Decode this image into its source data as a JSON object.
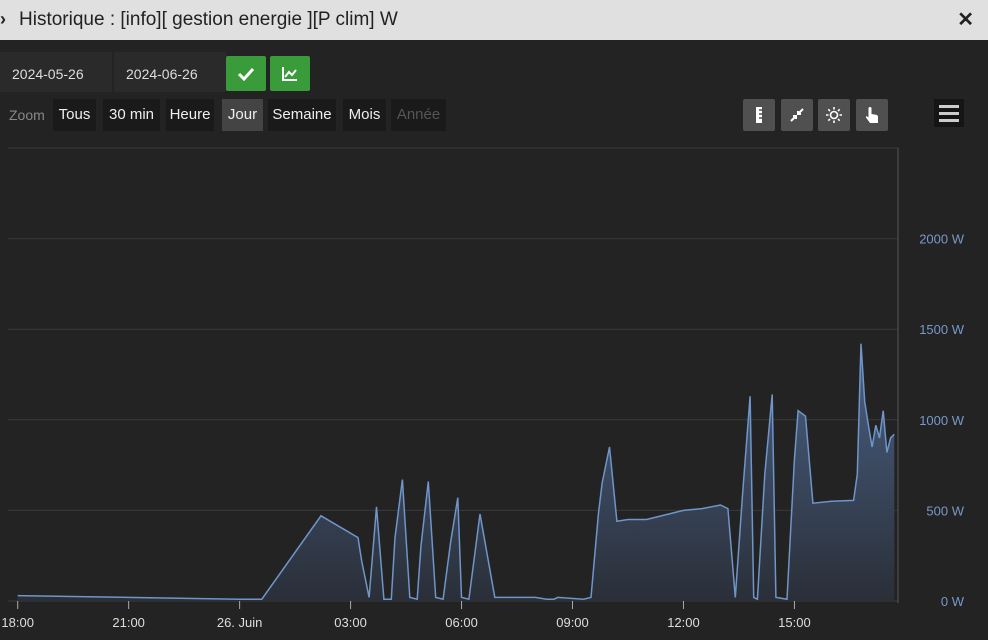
{
  "window": {
    "title": "Historique : [info][ gestion energie ][P clim] W"
  },
  "dates": {
    "start": "2024-05-26",
    "end": "2024-06-26"
  },
  "zoom": {
    "label": "Zoom",
    "buttons": [
      "Tous",
      "30 min",
      "Heure",
      "Jour",
      "Semaine",
      "Mois",
      "Année"
    ],
    "active": "Jour",
    "disabled": "Année"
  },
  "colors": {
    "accent_green": "#3a9b3a",
    "series": "#6f95c9",
    "area_top": "#4a6185",
    "area_bottom": "#2a2f38"
  },
  "chart_data": {
    "type": "area",
    "title": "",
    "xlabel": "",
    "ylabel": "",
    "ylim": [
      0,
      2500
    ],
    "y_ticks": [
      0,
      500,
      1000,
      1500,
      2000
    ],
    "y_tick_labels": [
      "0 W",
      "500 W",
      "1000 W",
      "1500 W",
      "2000 W"
    ],
    "x_ticks": [
      0,
      3,
      6,
      9,
      12,
      15,
      18,
      21
    ],
    "x_tick_labels": [
      "18:00",
      "21:00",
      "26. Juin",
      "03:00",
      "06:00",
      "09:00",
      "12:00",
      "15:00"
    ],
    "xlim": [
      -0.1,
      23.8
    ],
    "grid": true,
    "series": [
      {
        "name": "",
        "x": [
          0,
          6.0,
          6.6,
          8.2,
          9.2,
          9.3,
          9.5,
          9.7,
          9.9,
          10.1,
          10.2,
          10.4,
          10.6,
          10.8,
          10.9,
          11.1,
          11.3,
          11.5,
          11.7,
          11.9,
          12.0,
          12.2,
          12.5,
          12.9,
          14.0,
          14.3,
          14.4,
          14.5,
          14.6,
          15.3,
          15.5,
          15.7,
          15.8,
          16.0,
          16.2,
          16.5,
          17.0,
          18.0,
          18.5,
          19.0,
          19.2,
          19.4,
          19.6,
          19.8,
          19.9,
          20.0,
          20.2,
          20.4,
          20.5,
          20.8,
          21.0,
          21.1,
          21.3,
          21.5,
          22.0,
          22.6,
          22.7,
          22.8,
          22.9,
          23.0,
          23.1,
          23.2,
          23.3,
          23.4,
          23.5,
          23.6,
          23.7
        ],
        "values": [
          30,
          10,
          10,
          470,
          350,
          220,
          20,
          520,
          10,
          10,
          350,
          670,
          20,
          10,
          300,
          660,
          20,
          10,
          320,
          570,
          20,
          10,
          480,
          20,
          20,
          10,
          10,
          10,
          20,
          10,
          20,
          480,
          650,
          850,
          440,
          450,
          450,
          500,
          510,
          530,
          510,
          20,
          600,
          1130,
          20,
          10,
          700,
          1140,
          20,
          10,
          780,
          1050,
          1020,
          540,
          550,
          555,
          700,
          1420,
          1100,
          970,
          850,
          970,
          900,
          1050,
          820,
          900,
          920
        ]
      }
    ]
  }
}
